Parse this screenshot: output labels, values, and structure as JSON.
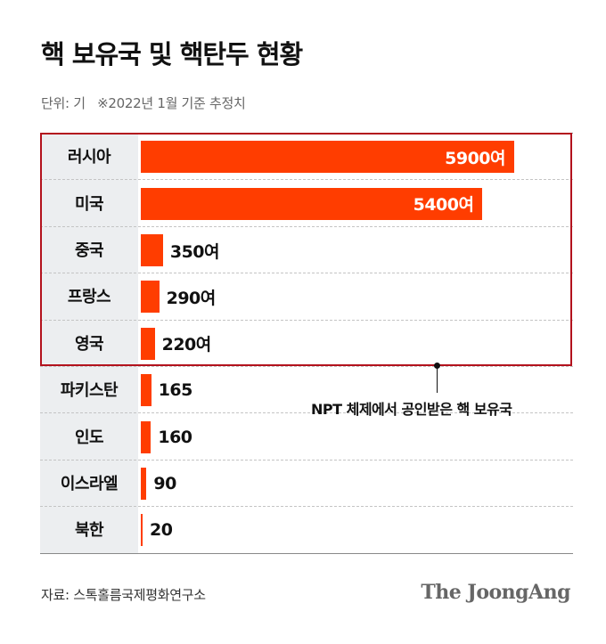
{
  "title": "핵 보유국 및 핵탄두 현황",
  "unit_note": "단위: 기   ※2022년 1월 기준 추정치",
  "annotation": "NPT 체제에서 공인받은 핵 보유국",
  "source": "자료: 스톡홀름국제평화연구소",
  "logo": "The JoongAng",
  "colors": {
    "bar": "#ff3d00",
    "box": "#b3121d",
    "label_bg": "#eceef0"
  },
  "chart_data": {
    "type": "bar",
    "orientation": "horizontal",
    "categories": [
      "러시아",
      "미국",
      "중국",
      "프랑스",
      "영국",
      "파키스탄",
      "인도",
      "이스라엘",
      "북한"
    ],
    "values": [
      5900,
      5400,
      350,
      290,
      220,
      165,
      160,
      90,
      20
    ],
    "value_labels": [
      "5900여",
      "5400여",
      "350여",
      "290여",
      "220여",
      "165",
      "160",
      "90",
      "20"
    ],
    "highlight_group": [
      "러시아",
      "미국",
      "중국",
      "프랑스",
      "영국"
    ],
    "xlim": [
      0,
      7200
    ],
    "grid": false
  }
}
